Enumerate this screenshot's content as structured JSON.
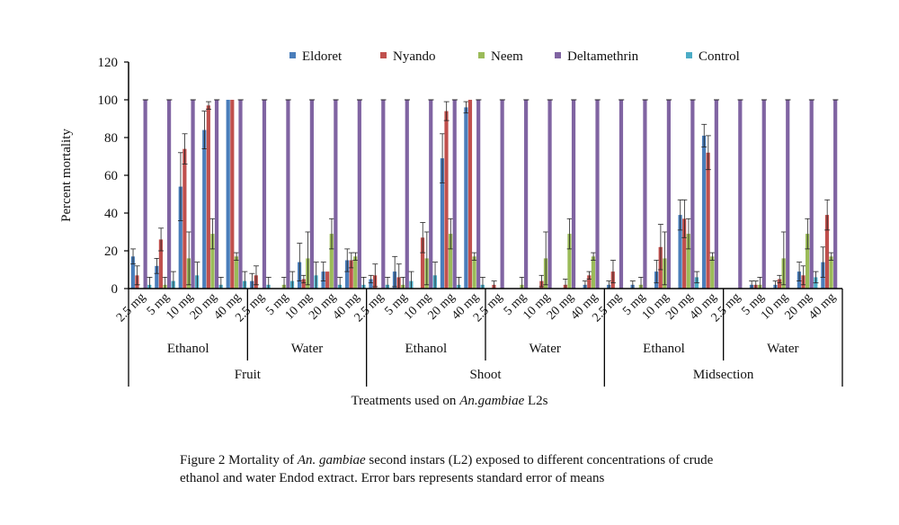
{
  "chart_data": {
    "type": "bar",
    "title": "",
    "xlabel": {
      "prefix": "Treatments used on ",
      "italic": "An.gambiae",
      "suffix": " L2s"
    },
    "ylabel": "Percent mortality",
    "ylim": [
      0,
      120
    ],
    "yticks": [
      0,
      20,
      40,
      60,
      80,
      100,
      120
    ],
    "grid": false,
    "legend_position": "top",
    "colors": {
      "Eldoret": "#4a7ebb",
      "Nyando": "#c0504d",
      "Neem": "#9bbb59",
      "Deltamethrin": "#8064a2",
      "Control": "#4bacc6"
    },
    "categories": [
      "2.5 mg",
      "5 mg",
      "10 mg",
      "20 mg",
      "40 mg",
      "2.5 mg",
      "5 mg",
      "10 mg",
      "20 mg",
      "40 mg",
      "2.5 mg",
      "5 mg",
      "10 mg",
      "20 mg",
      "40 mg",
      "2.5 mg",
      "5 mg",
      "10 mg",
      "20 mg",
      "40 mg",
      "2.5 mg",
      "5 mg",
      "10 mg",
      "20 mg",
      "40 mg",
      "2.5 mg",
      "5 mg",
      "10 mg",
      "20 mg",
      "40 mg"
    ],
    "solvent_groups": [
      "Ethanol",
      "Water",
      "Ethanol",
      "Water",
      "Ethanol",
      "Water"
    ],
    "part_groups": [
      "Fruit",
      "Shoot",
      "Midsection"
    ],
    "series": [
      {
        "name": "Eldoret",
        "values": [
          17,
          12,
          54,
          84,
          100,
          4,
          0,
          14,
          9,
          15,
          5,
          9,
          0,
          69,
          96,
          0,
          0,
          0,
          0,
          2,
          2,
          2,
          9,
          39,
          81,
          0,
          2,
          2,
          9,
          14
        ],
        "errors": [
          4,
          4,
          18,
          10,
          0,
          4,
          0,
          10,
          5,
          6,
          2,
          8,
          0,
          13,
          3,
          0,
          0,
          0,
          0,
          2,
          2,
          2,
          6,
          8,
          6,
          0,
          2,
          2,
          5,
          8
        ]
      },
      {
        "name": "Nyando",
        "values": [
          7,
          26,
          74,
          97,
          100,
          7,
          0,
          5,
          9,
          15,
          7,
          6,
          27,
          94,
          100,
          2,
          0,
          4,
          2,
          7,
          9,
          0,
          22,
          37,
          72,
          0,
          2,
          5,
          7,
          39
        ],
        "errors": [
          5,
          6,
          8,
          2,
          0,
          5,
          0,
          2,
          0,
          4,
          6,
          7,
          8,
          5,
          0,
          2,
          0,
          3,
          3,
          2,
          6,
          0,
          12,
          10,
          9,
          0,
          2,
          2,
          5,
          8
        ]
      },
      {
        "name": "Neem",
        "values": [
          0,
          2,
          16,
          29,
          17,
          0,
          2,
          16,
          29,
          17,
          0,
          2,
          16,
          29,
          17,
          0,
          2,
          16,
          29,
          17,
          0,
          2,
          16,
          29,
          17,
          0,
          2,
          16,
          29,
          17
        ],
        "errors": [
          0,
          4,
          14,
          8,
          2,
          0,
          4,
          14,
          8,
          2,
          0,
          4,
          14,
          8,
          2,
          0,
          4,
          14,
          8,
          2,
          0,
          4,
          14,
          8,
          2,
          0,
          4,
          14,
          8,
          2
        ]
      },
      {
        "name": "Deltamethrin",
        "values": [
          100,
          100,
          100,
          100,
          100,
          100,
          100,
          100,
          100,
          100,
          100,
          100,
          100,
          100,
          100,
          100,
          100,
          100,
          100,
          100,
          100,
          100,
          100,
          100,
          100,
          100,
          100,
          100,
          100,
          100
        ],
        "errors": [
          0,
          0,
          0,
          0,
          0,
          0,
          0,
          0,
          0,
          0,
          0,
          0,
          0,
          0,
          0,
          0,
          0,
          0,
          0,
          0,
          0,
          0,
          0,
          0,
          0,
          0,
          0,
          0,
          0,
          0
        ]
      },
      {
        "name": "Control",
        "values": [
          2,
          4,
          7,
          2,
          4,
          2,
          4,
          7,
          2,
          2,
          2,
          4,
          7,
          2,
          2,
          0,
          0,
          0,
          0,
          0,
          0,
          0,
          0,
          6,
          0,
          0,
          0,
          0,
          6,
          0
        ],
        "errors": [
          4,
          5,
          7,
          4,
          5,
          4,
          5,
          7,
          4,
          4,
          4,
          5,
          7,
          4,
          4,
          0,
          0,
          0,
          0,
          0,
          0,
          0,
          0,
          3,
          0,
          0,
          0,
          0,
          3,
          0
        ]
      }
    ]
  },
  "caption": {
    "part1": "Figure 2 Mortality of ",
    "italic": "An. gambiae",
    "part2": " second instars (L2) exposed to different concentrations of crude ethanol and water Endod extract. Error bars represents standard error of means"
  }
}
